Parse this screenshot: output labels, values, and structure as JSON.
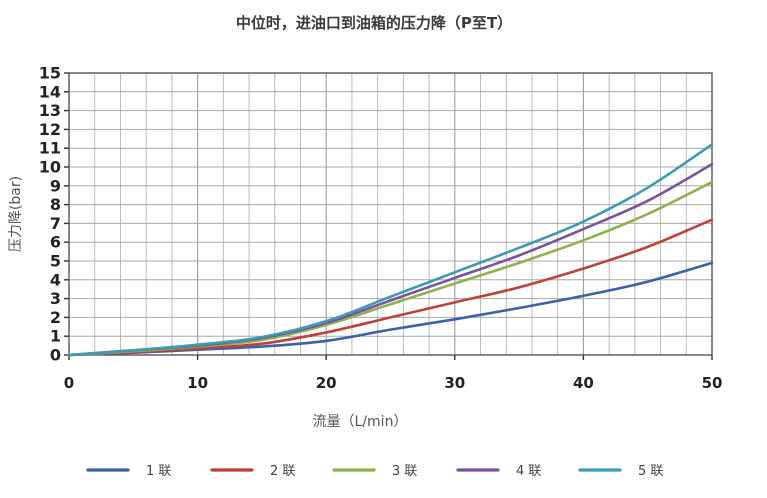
{
  "chart_data": {
    "type": "line",
    "title": "中位时，进油口到油箱的压力降（P至T）",
    "xlabel": "流量（L/min）",
    "ylabel": "压力降(bar)",
    "xlim": [
      0,
      50
    ],
    "ylim": [
      0,
      15
    ],
    "x_ticks": [
      "0",
      "10",
      "20",
      "30",
      "40",
      "50"
    ],
    "y_ticks": [
      "0",
      "1",
      "2",
      "3",
      "4",
      "5",
      "6",
      "7",
      "8",
      "9",
      "10",
      "11",
      "12",
      "13",
      "14",
      "15"
    ],
    "grid": true,
    "legend_position": "bottom",
    "x": [
      0,
      5,
      10,
      15,
      20,
      25,
      30,
      35,
      40,
      45,
      50
    ],
    "series": [
      {
        "name": "1 联",
        "color": "#3b62a6",
        "values": [
          0,
          0.12,
          0.28,
          0.45,
          0.75,
          1.35,
          1.9,
          2.5,
          3.15,
          3.9,
          4.9
        ]
      },
      {
        "name": "2 联",
        "color": "#c0403c",
        "values": [
          0,
          0.15,
          0.35,
          0.6,
          1.2,
          2.0,
          2.8,
          3.6,
          4.6,
          5.75,
          7.2
        ]
      },
      {
        "name": "3 联",
        "color": "#8db24a",
        "values": [
          0,
          0.2,
          0.45,
          0.8,
          1.6,
          2.7,
          3.8,
          4.9,
          6.1,
          7.5,
          9.2
        ]
      },
      {
        "name": "4 联",
        "color": "#7a53a0",
        "values": [
          0,
          0.25,
          0.5,
          0.9,
          1.7,
          2.9,
          4.1,
          5.3,
          6.7,
          8.2,
          10.15
        ]
      },
      {
        "name": "5 联",
        "color": "#3a9bb3",
        "values": [
          0,
          0.25,
          0.55,
          0.95,
          1.8,
          3.1,
          4.4,
          5.7,
          7.1,
          8.9,
          11.2
        ]
      }
    ]
  }
}
